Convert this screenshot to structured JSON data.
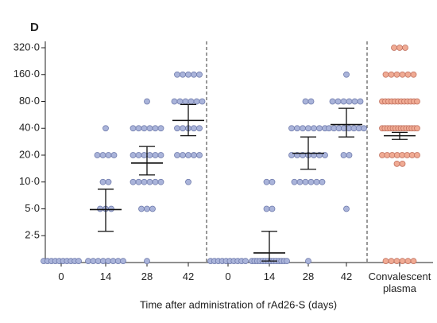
{
  "chart_data": {
    "type": "dotplot",
    "panel_label": "D",
    "x_label": "Time after administration of rAd26-S (days)",
    "log_scale": true,
    "ylim": [
      1.25,
      320
    ],
    "yticks": [
      {
        "value": 2.5,
        "label": "2·5"
      },
      {
        "value": 5,
        "label": "5·0"
      },
      {
        "value": 10,
        "label": "10·0"
      },
      {
        "value": 20,
        "label": "20·0"
      },
      {
        "value": 40,
        "label": "40·0"
      },
      {
        "value": 80,
        "label": "80·0"
      },
      {
        "value": 160,
        "label": "160·0"
      },
      {
        "value": 320,
        "label": "320·0"
      }
    ],
    "groups": [
      {
        "category": "0",
        "color": "#aab4da",
        "values": [
          1.3,
          1.3,
          1.3,
          1.3,
          1.3,
          1.3,
          1.3,
          1.3,
          1.3,
          1.3
        ],
        "mean": null,
        "ci_low": null,
        "ci_high": null
      },
      {
        "category": "14",
        "color": "#aab4da",
        "values": [
          40,
          20,
          20,
          20,
          20,
          10,
          10,
          5,
          5,
          5,
          1.3,
          1.3,
          1.3,
          1.3,
          1.3,
          1.3,
          1.3,
          1.3
        ],
        "mean": 4.9,
        "ci_low": 2.8,
        "ci_high": 8.3
      },
      {
        "category": "28",
        "color": "#aab4da",
        "values": [
          80,
          40,
          40,
          40,
          40,
          40,
          40,
          20,
          20,
          20,
          20,
          20,
          20,
          10,
          10,
          10,
          10,
          10,
          10,
          5,
          5,
          5,
          1.3
        ],
        "mean": 16.3,
        "ci_low": 12,
        "ci_high": 25
      },
      {
        "category": "42",
        "color": "#aab4da",
        "values": [
          160,
          160,
          160,
          160,
          160,
          80,
          80,
          80,
          80,
          80,
          80,
          40,
          40,
          40,
          40,
          40,
          20,
          20,
          20,
          20,
          20,
          10
        ],
        "mean": 49,
        "ci_low": 33,
        "ci_high": 74
      },
      {
        "category": "0",
        "color": "#aab4da",
        "values": [
          1.3,
          1.3,
          1.3,
          1.3,
          1.3,
          1.3,
          1.3,
          1.3,
          1.3,
          1.3
        ],
        "mean": null,
        "ci_low": null,
        "ci_high": null
      },
      {
        "category": "14",
        "color": "#aab4da",
        "values": [
          10,
          10,
          5,
          5,
          1.3,
          1.3,
          1.3,
          1.3,
          1.3,
          1.3,
          1.3,
          1.3,
          1.3,
          1.3,
          1.3,
          1.3,
          1.3,
          1.3
        ],
        "mean": 1.6,
        "ci_low": 1.3,
        "ci_high": 2.8
      },
      {
        "category": "28",
        "color": "#aab4da",
        "values": [
          80,
          80,
          40,
          40,
          40,
          40,
          40,
          40,
          40,
          20,
          20,
          20,
          20,
          20,
          20,
          20,
          10,
          10,
          10,
          10,
          10,
          10,
          1.3
        ],
        "mean": 21,
        "ci_low": 13.9,
        "ci_high": 32
      },
      {
        "category": "42",
        "color": "#aab4da",
        "values": [
          160,
          80,
          80,
          80,
          80,
          80,
          80,
          40,
          40,
          40,
          40,
          40,
          40,
          40,
          40,
          20,
          20,
          5
        ],
        "mean": 44,
        "ci_low": 32,
        "ci_high": 67
      },
      {
        "category": "Convalescent plasma",
        "color": "#f0ab94",
        "values": [
          320,
          320,
          320,
          160,
          160,
          160,
          160,
          160,
          160,
          80,
          80,
          80,
          80,
          80,
          80,
          80,
          80,
          80,
          80,
          80,
          80,
          40,
          40,
          40,
          40,
          40,
          40,
          40,
          40,
          40,
          40,
          40,
          40,
          40,
          40,
          20,
          20,
          20,
          20,
          20,
          20,
          20,
          20,
          16,
          16,
          1.3,
          1.3,
          1.3,
          1.3,
          1.3,
          1.3
        ],
        "mean": 33,
        "ci_low": 30,
        "ci_high": 36
      }
    ]
  }
}
